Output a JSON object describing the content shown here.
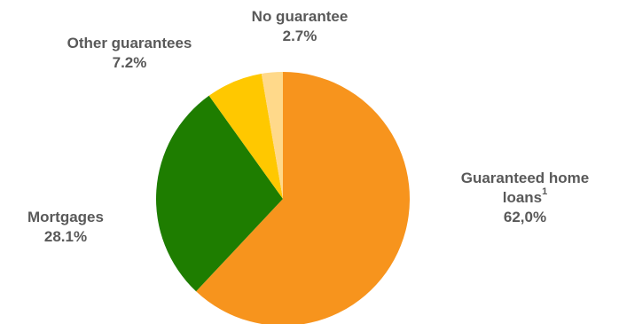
{
  "chart_data": {
    "type": "pie",
    "slices": [
      {
        "label": "Guaranteed home loans",
        "superscript": "1",
        "value_text": "62,0%",
        "value": 62.0,
        "color": "#F7941D"
      },
      {
        "label": "Mortgages",
        "value_text": "28.1%",
        "value": 28.1,
        "color": "#1E7D00"
      },
      {
        "label": "Other guarantees",
        "value_text": "7.2%",
        "value": 7.2,
        "color": "#FFC800"
      },
      {
        "label": "No guarantee",
        "value_text": "2.7%",
        "value": 2.7,
        "color": "#FFD98A"
      }
    ],
    "start": "12 o'clock, clockwise",
    "legend": "none (direct labels)"
  },
  "labels": {
    "home_line1": "Guaranteed home",
    "home_line2": "loans",
    "home_sup": "1",
    "home_value": "62,0%",
    "mortgages": "Mortgages",
    "mortgages_value": "28.1%",
    "other": "Other guarantees",
    "other_value": "7.2%",
    "none": "No guarantee",
    "none_value": "2.7%"
  }
}
